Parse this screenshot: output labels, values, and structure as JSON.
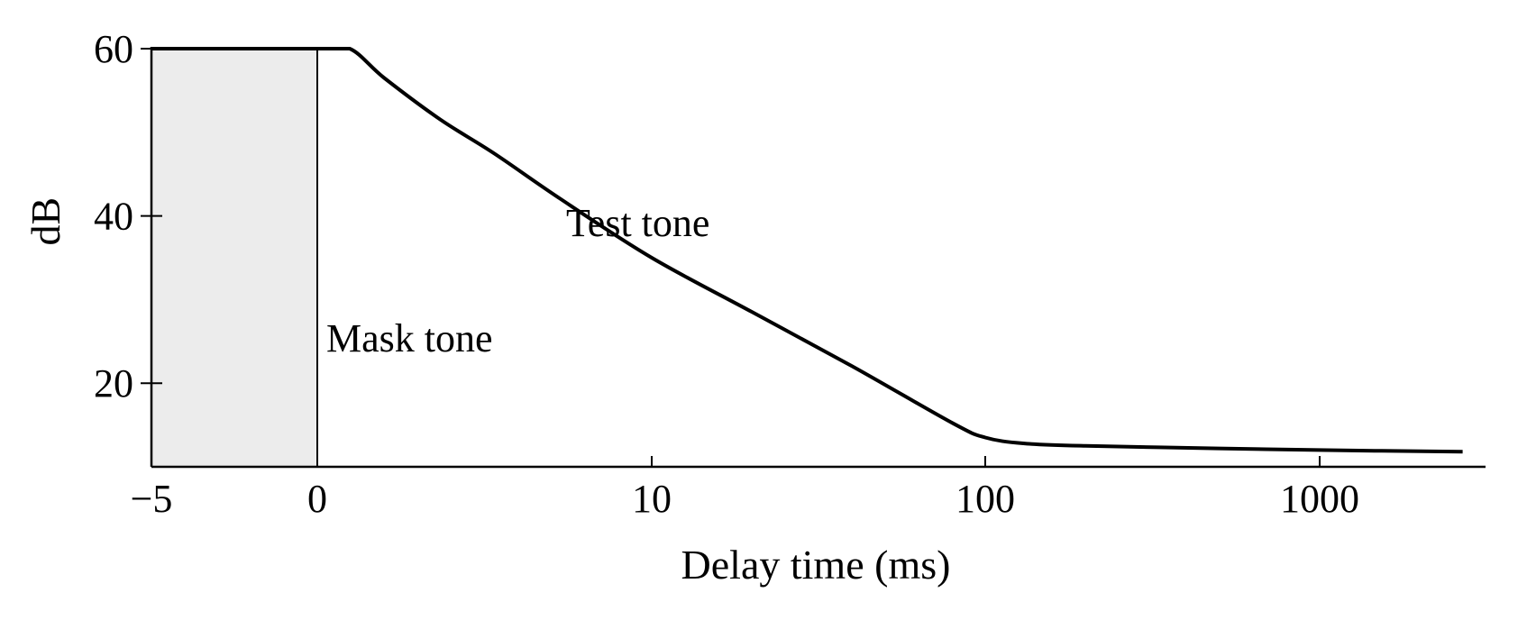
{
  "chart_data": {
    "type": "line",
    "title": "",
    "xlabel": "Delay time (ms)",
    "ylabel": "dB",
    "x_scale": "linear below 1 ms, log from 1 ms upward (0 shown at 0, 10, 100, 1000 ticks)",
    "x_ticks": [
      "−5",
      "0",
      "10",
      "100",
      "1000"
    ],
    "y_ticks": [
      "20",
      "40",
      "60"
    ],
    "ylim": [
      10,
      60
    ],
    "mask_region": {
      "label": "Mask tone",
      "x_start": -5,
      "x_end": 0,
      "y_top": 60,
      "color": "#ececec"
    },
    "series": [
      {
        "name": "Test tone",
        "x": [
          -5,
          0,
          1,
          1.3,
          2,
          3,
          5,
          10,
          20,
          40,
          80,
          100,
          130,
          200,
          500,
          1000,
          2700
        ],
        "y": [
          60,
          60,
          60,
          56.5,
          51.5,
          47.5,
          42,
          35,
          28.5,
          22,
          15.2,
          13.5,
          12.8,
          12.5,
          12.2,
          12.0,
          11.8
        ]
      }
    ],
    "annotations": [
      {
        "text": "Test tone",
        "x": 5.2,
        "y": 39
      },
      {
        "text": "Mask tone",
        "x": 0.3,
        "y": 25.5
      }
    ],
    "grid": false,
    "legend": "none"
  }
}
